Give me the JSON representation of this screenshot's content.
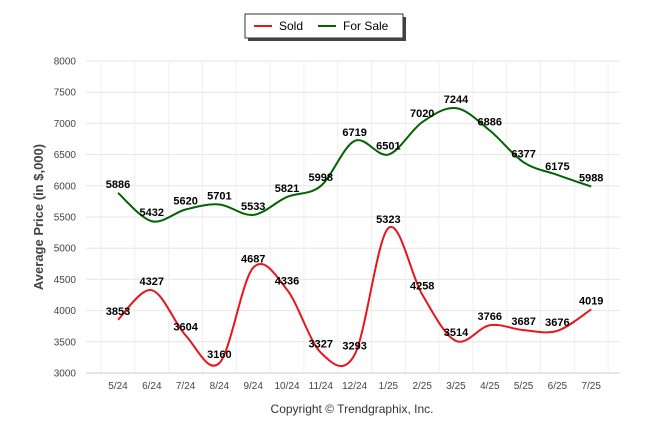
{
  "chart_data": {
    "type": "line",
    "ylabel": "Average Price (in $,000)",
    "xlabel": "",
    "ylim": [
      3000,
      8000
    ],
    "yticks": [
      3000,
      3500,
      4000,
      4500,
      5000,
      5500,
      6000,
      6500,
      7000,
      7500,
      8000
    ],
    "grid": true,
    "legend_position": "top-center",
    "categories": [
      "5/24",
      "6/24",
      "7/24",
      "8/24",
      "9/24",
      "10/24",
      "11/24",
      "12/24",
      "1/25",
      "2/25",
      "3/25",
      "4/25",
      "5/25",
      "6/25",
      "7/25"
    ],
    "series": [
      {
        "name": "Sold",
        "color": "#e8161b",
        "values": [
          3853,
          4327,
          3604,
          3160,
          4687,
          4336,
          3327,
          3293,
          5323,
          4258,
          3514,
          3766,
          3687,
          3676,
          4019
        ]
      },
      {
        "name": "For Sale",
        "color": "#006400",
        "values": [
          5886,
          5432,
          5620,
          5701,
          5533,
          5821,
          5998,
          6719,
          6501,
          7020,
          7244,
          6886,
          6377,
          6175,
          5988
        ]
      }
    ]
  },
  "footer": {
    "credit": "Copyright © Trendgraphix, Inc."
  }
}
